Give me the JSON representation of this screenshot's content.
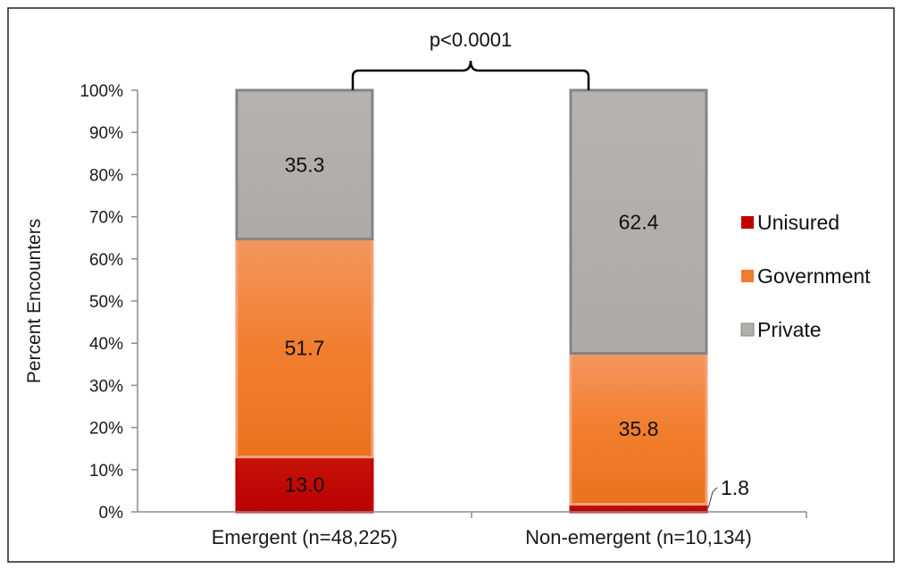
{
  "chart_data": {
    "type": "bar",
    "stacked": true,
    "categories": [
      "Emergent (n=48,225)",
      "Non-emergent (n=10,134)"
    ],
    "series": [
      {
        "name": "Unisured",
        "values": [
          13.0,
          1.8
        ],
        "labels": [
          "13.0",
          "1.8"
        ],
        "color": "#c00000"
      },
      {
        "name": "Government",
        "values": [
          51.7,
          35.8
        ],
        "labels": [
          "51.7",
          "35.8"
        ],
        "color": "#f07c30"
      },
      {
        "name": "Private",
        "values": [
          35.3,
          62.4
        ],
        "labels": [
          "35.3",
          "62.4"
        ],
        "color": "#b2aeac"
      }
    ],
    "ylabel": "Percent Encounters",
    "ylim": [
      0,
      100
    ],
    "yticks": [
      "0%",
      "10%",
      "20%",
      "30%",
      "40%",
      "50%",
      "60%",
      "70%",
      "80%",
      "90%",
      "100%"
    ],
    "legend_position": "right",
    "grid": false,
    "annotation": "p<0.0001"
  }
}
